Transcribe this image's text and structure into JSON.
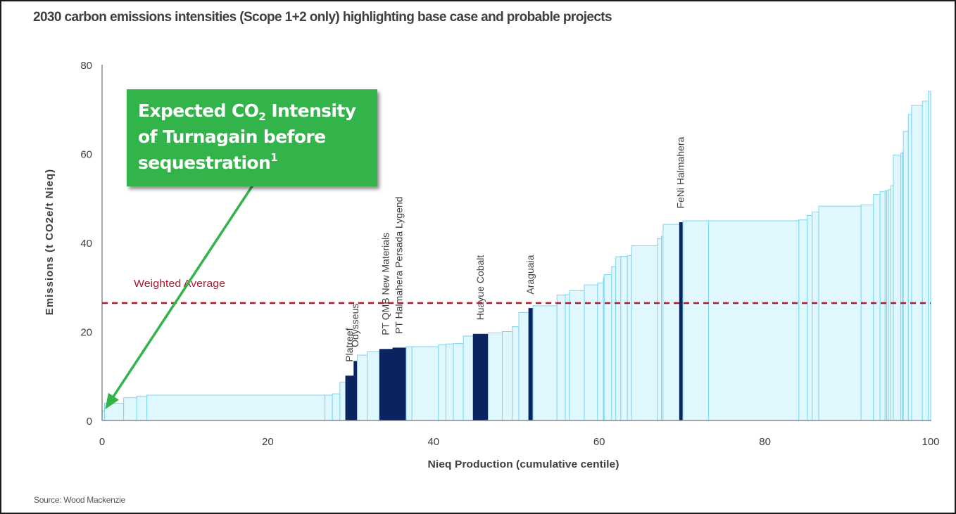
{
  "title": "2030 carbon emissions intensities (Scope 1+2 only) highlighting base case and probable projects",
  "source": "Source: Wood Mackenzie",
  "callout": {
    "line1_pre": "Expected CO",
    "line1_sub": "2",
    "line1_post": " Intensity",
    "line2": "of Turnagain before",
    "line3": "sequestration",
    "line3_sup": "1",
    "color": "#33b44a",
    "points_to": {
      "x": 0.2,
      "y": 2.2
    }
  },
  "colors": {
    "base_fill": "#dff7fd",
    "base_stroke": "#7dd6f2",
    "highlight_fill": "#0a2361",
    "weighted_average": "#b0182e",
    "callout_arrow": "#33b44a",
    "text": "#404040"
  },
  "chart_data": {
    "type": "bar",
    "subtype": "cost-curve (variable-width cumulative bars)",
    "title": "2030 carbon emissions intensities (Scope 1+2 only) highlighting base case and probable projects",
    "xlabel": "Nieq Production (cumulative centile)",
    "ylabel": "Emissions (t CO2e/t Nieq)",
    "xlim": [
      0,
      100
    ],
    "ylim": [
      0,
      80
    ],
    "xticks": [
      0,
      20,
      40,
      60,
      80,
      100
    ],
    "yticks": [
      0,
      20,
      40,
      60,
      80
    ],
    "grid": false,
    "weighted_average": {
      "label": "Weighted Average",
      "value": 26.4
    },
    "bars": [
      {
        "x0": 0.0,
        "x1": 0.3,
        "y": 2.2
      },
      {
        "x0": 0.3,
        "x1": 2.6,
        "y": 3.9
      },
      {
        "x0": 2.6,
        "x1": 4.2,
        "y": 5.1
      },
      {
        "x0": 4.2,
        "x1": 5.4,
        "y": 5.5
      },
      {
        "x0": 5.4,
        "x1": 26.9,
        "y": 5.7
      },
      {
        "x0": 26.9,
        "x1": 27.8,
        "y": 5.7
      },
      {
        "x0": 27.8,
        "x1": 28.7,
        "y": 6.0
      },
      {
        "x0": 28.7,
        "x1": 29.4,
        "y": 8.6
      },
      {
        "x0": 29.4,
        "x1": 30.4,
        "y": 10.0,
        "highlight": true,
        "label": "Platreef"
      },
      {
        "x0": 30.4,
        "x1": 30.8,
        "y": 13.3,
        "highlight": true,
        "label": "Odysseus"
      },
      {
        "x0": 30.8,
        "x1": 32.0,
        "y": 14.7
      },
      {
        "x0": 32.0,
        "x1": 33.5,
        "y": 15.5
      },
      {
        "x0": 33.5,
        "x1": 35.1,
        "y": 16.0,
        "highlight": true,
        "label": "PT QMB New Materials"
      },
      {
        "x0": 35.1,
        "x1": 36.7,
        "y": 16.3,
        "highlight": true,
        "label": "PT Halmahera Persada Lygend"
      },
      {
        "x0": 36.7,
        "x1": 37.4,
        "y": 16.6
      },
      {
        "x0": 37.4,
        "x1": 40.6,
        "y": 16.6
      },
      {
        "x0": 40.6,
        "x1": 41.5,
        "y": 17.0
      },
      {
        "x0": 41.5,
        "x1": 42.4,
        "y": 17.2
      },
      {
        "x0": 42.4,
        "x1": 43.6,
        "y": 17.3
      },
      {
        "x0": 43.6,
        "x1": 44.8,
        "y": 19.0
      },
      {
        "x0": 44.8,
        "x1": 46.6,
        "y": 19.4,
        "highlight": true,
        "label": "Huayue Cobalt"
      },
      {
        "x0": 46.6,
        "x1": 48.3,
        "y": 19.7
      },
      {
        "x0": 48.3,
        "x1": 49.5,
        "y": 20.0
      },
      {
        "x0": 49.5,
        "x1": 50.3,
        "y": 21.1
      },
      {
        "x0": 50.3,
        "x1": 51.5,
        "y": 24.3
      },
      {
        "x0": 51.5,
        "x1": 52.0,
        "y": 25.2,
        "highlight": true,
        "label": "Araguaia"
      },
      {
        "x0": 52.0,
        "x1": 54.9,
        "y": 25.8
      },
      {
        "x0": 54.9,
        "x1": 55.9,
        "y": 28.2
      },
      {
        "x0": 55.9,
        "x1": 56.4,
        "y": 28.3
      },
      {
        "x0": 56.4,
        "x1": 58.2,
        "y": 29.2
      },
      {
        "x0": 58.2,
        "x1": 59.8,
        "y": 30.5
      },
      {
        "x0": 59.8,
        "x1": 60.5,
        "y": 30.9
      },
      {
        "x0": 60.5,
        "x1": 60.6,
        "y": 32.0
      },
      {
        "x0": 60.6,
        "x1": 61.5,
        "y": 32.8
      },
      {
        "x0": 61.5,
        "x1": 62.0,
        "y": 34.6
      },
      {
        "x0": 62.0,
        "x1": 62.6,
        "y": 36.8
      },
      {
        "x0": 62.6,
        "x1": 63.4,
        "y": 36.9
      },
      {
        "x0": 63.4,
        "x1": 63.9,
        "y": 37.1
      },
      {
        "x0": 63.9,
        "x1": 67.0,
        "y": 39.3
      },
      {
        "x0": 67.0,
        "x1": 67.5,
        "y": 40.9
      },
      {
        "x0": 67.5,
        "x1": 67.7,
        "y": 41.4
      },
      {
        "x0": 67.7,
        "x1": 69.7,
        "y": 44.1
      },
      {
        "x0": 69.7,
        "x1": 70.1,
        "y": 44.5,
        "highlight": true,
        "label": "FeNi Halmahera"
      },
      {
        "x0": 70.1,
        "x1": 73.2,
        "y": 44.9
      },
      {
        "x0": 73.2,
        "x1": 84.1,
        "y": 44.9
      },
      {
        "x0": 84.1,
        "x1": 85.1,
        "y": 45.1
      },
      {
        "x0": 85.1,
        "x1": 85.7,
        "y": 46.1
      },
      {
        "x0": 85.7,
        "x1": 86.5,
        "y": 46.9
      },
      {
        "x0": 86.5,
        "x1": 91.6,
        "y": 48.2
      },
      {
        "x0": 91.6,
        "x1": 93.1,
        "y": 48.5
      },
      {
        "x0": 93.1,
        "x1": 93.9,
        "y": 50.8
      },
      {
        "x0": 93.9,
        "x1": 94.5,
        "y": 51.5
      },
      {
        "x0": 94.5,
        "x1": 94.7,
        "y": 51.7
      },
      {
        "x0": 94.7,
        "x1": 94.9,
        "y": 51.7
      },
      {
        "x0": 94.9,
        "x1": 95.2,
        "y": 51.9
      },
      {
        "x0": 95.2,
        "x1": 95.5,
        "y": 52.8
      },
      {
        "x0": 95.5,
        "x1": 96.4,
        "y": 59.7
      },
      {
        "x0": 96.4,
        "x1": 96.6,
        "y": 60.1
      },
      {
        "x0": 96.6,
        "x1": 96.7,
        "y": 60.4
      },
      {
        "x0": 96.7,
        "x1": 97.3,
        "y": 65.0
      },
      {
        "x0": 97.3,
        "x1": 97.7,
        "y": 68.8
      },
      {
        "x0": 97.7,
        "x1": 99.0,
        "y": 70.9
      },
      {
        "x0": 99.0,
        "x1": 99.7,
        "y": 71.8
      },
      {
        "x0": 99.7,
        "x1": 100.0,
        "y": 74.0
      }
    ]
  }
}
